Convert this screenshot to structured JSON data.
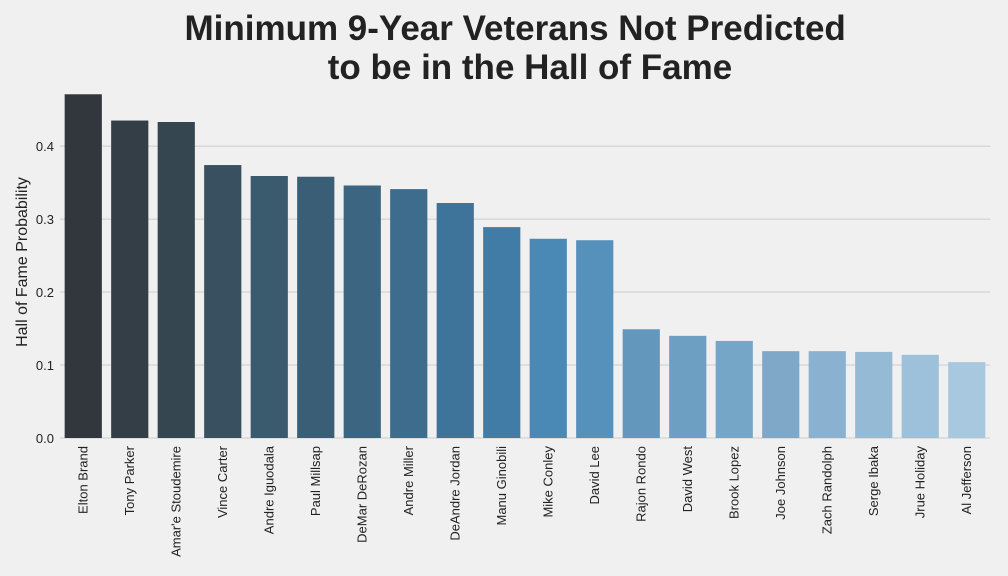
{
  "chart_data": {
    "type": "bar",
    "title_lines": [
      "Minimum 9-Year Veterans Not Predicted",
      "to be in the Hall of Fame"
    ],
    "xlabel": "",
    "ylabel": "Hall of Fame Probability",
    "ylim": [
      0,
      0.47
    ],
    "yticks": [
      0.0,
      0.1,
      0.2,
      0.3,
      0.4
    ],
    "ytick_labels": [
      "0.0",
      "0.1",
      "0.2",
      "0.3",
      "0.4"
    ],
    "grid": true,
    "categories": [
      "Elton Brand",
      "Tony Parker",
      "Amar'e Stoudemire",
      "Vince Carter",
      "Andre Iguodala",
      "Paul Millsap",
      "DeMar DeRozan",
      "Andre Miller",
      "DeAndre Jordan",
      "Manu Ginobili",
      "Mike Conley",
      "David Lee",
      "Rajon Rondo",
      "David West",
      "Brook Lopez",
      "Joe Johnson",
      "Zach Randolph",
      "Serge Ibaka",
      "Jrue Holiday",
      "Al Jefferson"
    ],
    "values": [
      0.471,
      0.435,
      0.433,
      0.374,
      0.359,
      0.358,
      0.346,
      0.341,
      0.322,
      0.289,
      0.273,
      0.271,
      0.149,
      0.14,
      0.133,
      0.119,
      0.119,
      0.118,
      0.114,
      0.104
    ],
    "colors": [
      "#32373d",
      "#343e47",
      "#364651",
      "#38505f",
      "#3a5a6e",
      "#3b5e77",
      "#3c6582",
      "#3d6c8d",
      "#3e739a",
      "#417ca7",
      "#4a88b5",
      "#5591bb",
      "#6398bc",
      "#6d9fc2",
      "#76a6c7",
      "#7fa8c8",
      "#8bb1d0",
      "#94bad6",
      "#9ec1db",
      "#a8c8e0"
    ]
  }
}
